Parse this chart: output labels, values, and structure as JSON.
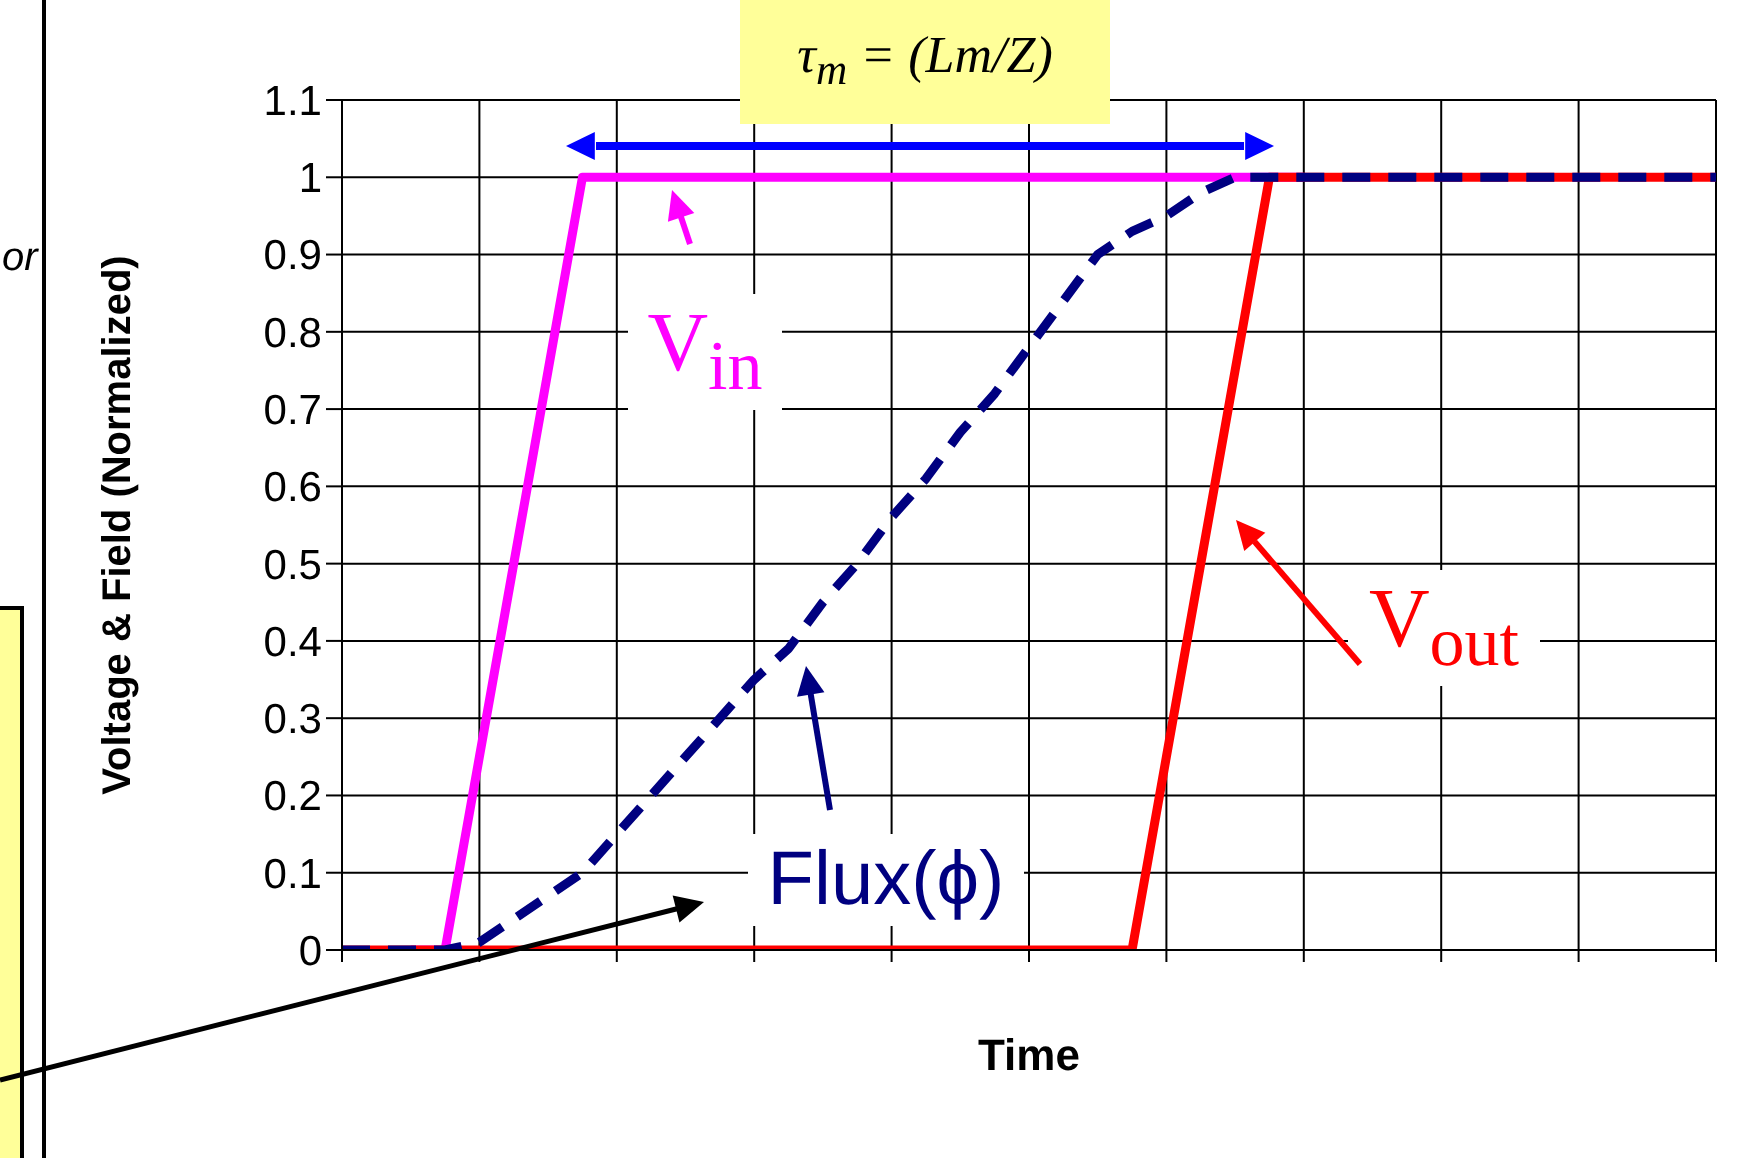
{
  "chart_data": {
    "type": "line",
    "xlabel": "Time",
    "ylabel": "Voltage & Field (Normalized)",
    "categories": [
      null,
      null,
      null,
      null,
      null,
      null,
      null,
      null,
      null,
      null,
      null,
      null,
      null,
      null,
      null,
      null,
      null,
      null,
      null,
      null,
      null,
      null,
      null,
      null,
      null,
      null,
      null,
      null,
      null,
      null,
      null,
      null,
      null,
      null,
      null,
      null,
      null,
      null,
      null,
      null,
      null
    ],
    "ylim": [
      0,
      1.1
    ],
    "yticks": [
      0,
      0.1,
      0.2,
      0.3,
      0.4,
      0.5,
      0.6,
      0.7,
      0.8,
      0.9,
      1,
      1.1
    ],
    "grid": true,
    "marker": "none",
    "series": [
      {
        "name": "V$_{in}$",
        "color": "#ff00ff",
        "line_style": "solid",
        "values": [
          null,
          null,
          0,
          0,
          0.25,
          0.5,
          0.75,
          1,
          1,
          1,
          1,
          1,
          1,
          1,
          1,
          1,
          1,
          1,
          1,
          1,
          1,
          1,
          1,
          1,
          1,
          1,
          1,
          1,
          1,
          null,
          null,
          null,
          null,
          null,
          null,
          null,
          null,
          null,
          null,
          null,
          null
        ]
      },
      {
        "name": "V$_{out}$",
        "color": "#ff0000",
        "line_style": "solid",
        "values": [
          0,
          0,
          0,
          0,
          0,
          0,
          0,
          0,
          0,
          0,
          0,
          0,
          0,
          0,
          0,
          0,
          0,
          0,
          0,
          0,
          0,
          0,
          0,
          0,
          0.25,
          0.5,
          0.75,
          1,
          1,
          1,
          1,
          1,
          1,
          1,
          1,
          1,
          1,
          1,
          1,
          1,
          1
        ]
      },
      {
        "name": "Flux(ϕ)",
        "color": "#000080",
        "line_style": "dashed",
        "values": [
          0,
          0,
          0,
          0,
          0.01,
          0.04,
          0.07,
          0.1,
          0.15,
          0.2,
          0.25,
          0.3,
          0.35,
          0.39,
          0.45,
          0.5,
          0.56,
          0.61,
          0.67,
          0.72,
          0.78,
          0.84,
          0.9,
          0.93,
          0.95,
          0.98,
          1,
          1,
          1,
          1,
          1,
          1,
          1,
          1,
          1,
          1,
          1,
          1,
          1,
          1,
          1
        ]
      }
    ],
    "annotations": [
      "τ$_{m}$ = (Lm/Z)",
      "or"
    ]
  }
}
